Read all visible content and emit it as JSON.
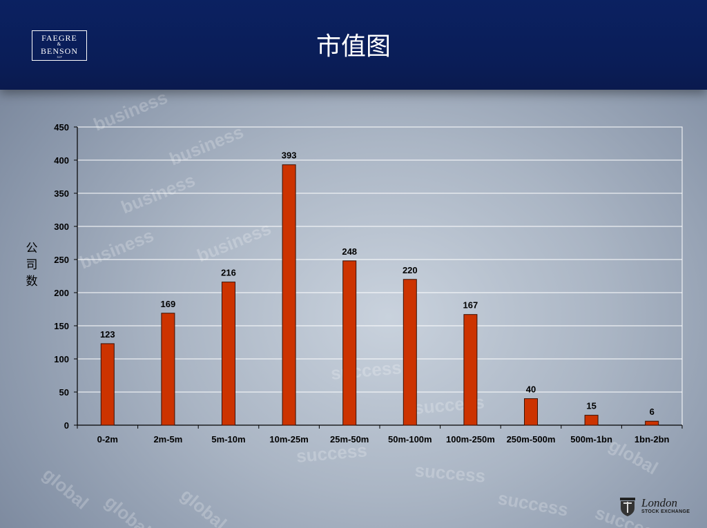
{
  "header": {
    "title": "市值图",
    "logo": {
      "line1": "FAEGRE",
      "amp": "&",
      "line2": "BENSON",
      "suffix": "LLP"
    }
  },
  "footer_logo": {
    "name": "London",
    "sub": "STOCK EXCHANGE",
    "icon": "lse-crest-icon"
  },
  "watermark_words": [
    "business",
    "success",
    "global"
  ],
  "colors": {
    "header": "#0b2161",
    "bar": "#cc3300",
    "bar_stroke": "#3a1000",
    "grid": "#ffffff"
  },
  "chart_data": {
    "type": "bar",
    "title": "",
    "xlabel": "",
    "ylabel": "公司数",
    "ylabel_chars": [
      "公",
      "司",
      "数"
    ],
    "categories": [
      "0-2m",
      "2m-5m",
      "5m-10m",
      "10m-25m",
      "25m-50m",
      "50m-100m",
      "100m-250m",
      "250m-500m",
      "500m-1bn",
      "1bn-2bn"
    ],
    "values": [
      123,
      169,
      216,
      393,
      248,
      220,
      167,
      40,
      15,
      6
    ],
    "ylim": [
      0,
      450
    ],
    "yticks": [
      0,
      50,
      100,
      150,
      200,
      250,
      300,
      350,
      400,
      450
    ],
    "grid": true,
    "legend": "none"
  }
}
